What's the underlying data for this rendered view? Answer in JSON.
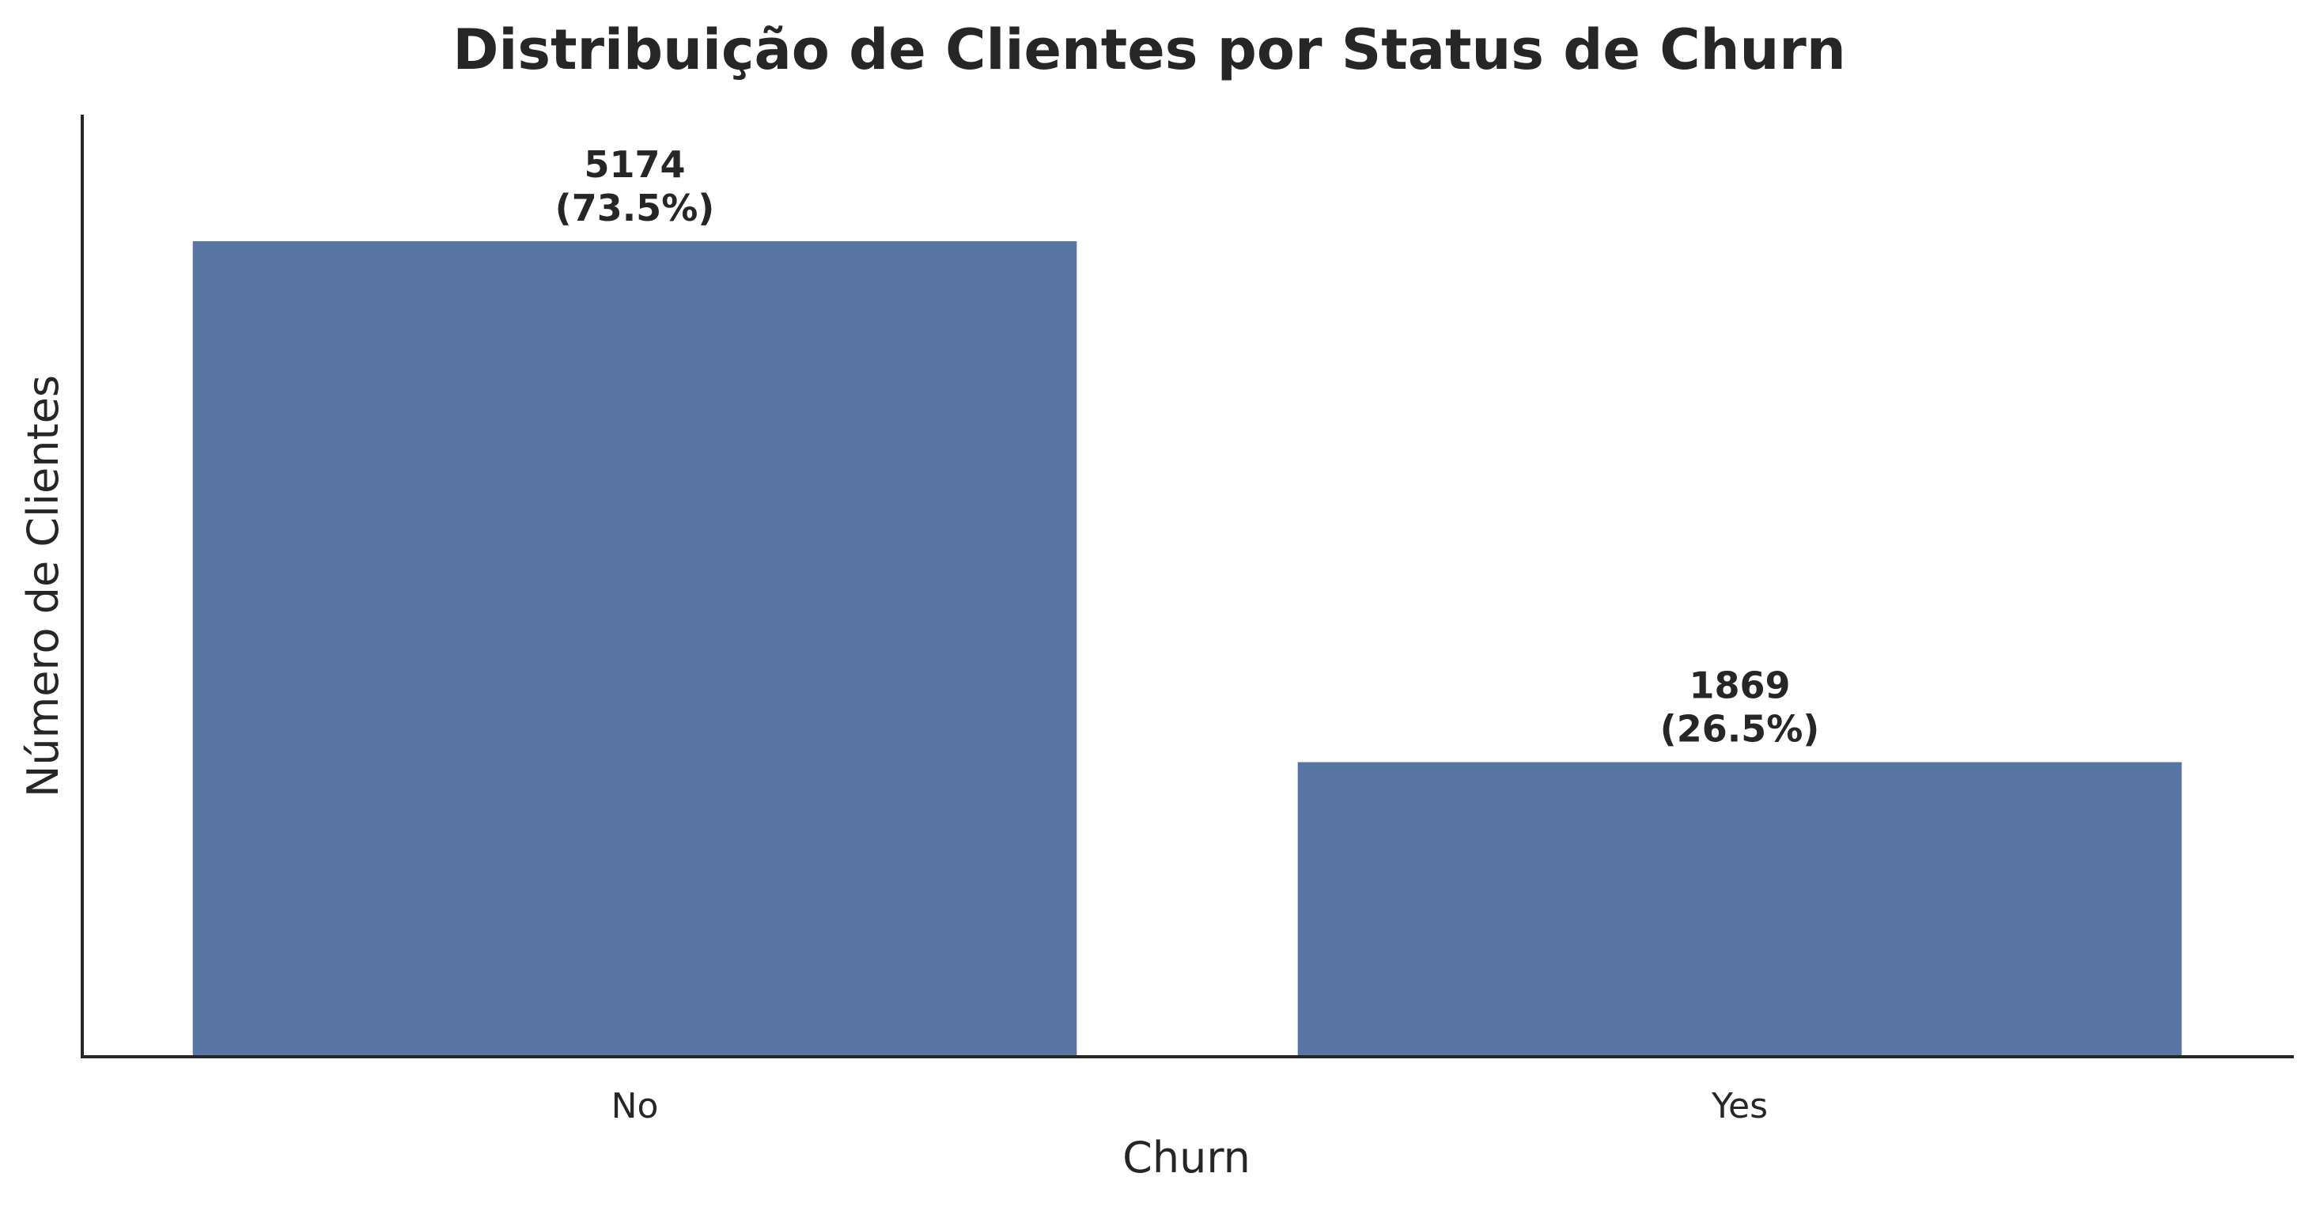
{
  "chart_data": {
    "type": "bar",
    "title": "Distribuição de Clientes por Status de Churn",
    "xlabel": "Churn",
    "ylabel": "Número de Clientes",
    "categories": [
      "No",
      "Yes"
    ],
    "values": [
      5174,
      1869
    ],
    "percent_labels": [
      "(73.5%)",
      "(26.5%)"
    ],
    "ylim": [
      0,
      6200
    ],
    "y_ticks_visible": false,
    "grid": false,
    "legend": "none",
    "bar_color": "#5875a4",
    "axis_color": "#262626"
  }
}
